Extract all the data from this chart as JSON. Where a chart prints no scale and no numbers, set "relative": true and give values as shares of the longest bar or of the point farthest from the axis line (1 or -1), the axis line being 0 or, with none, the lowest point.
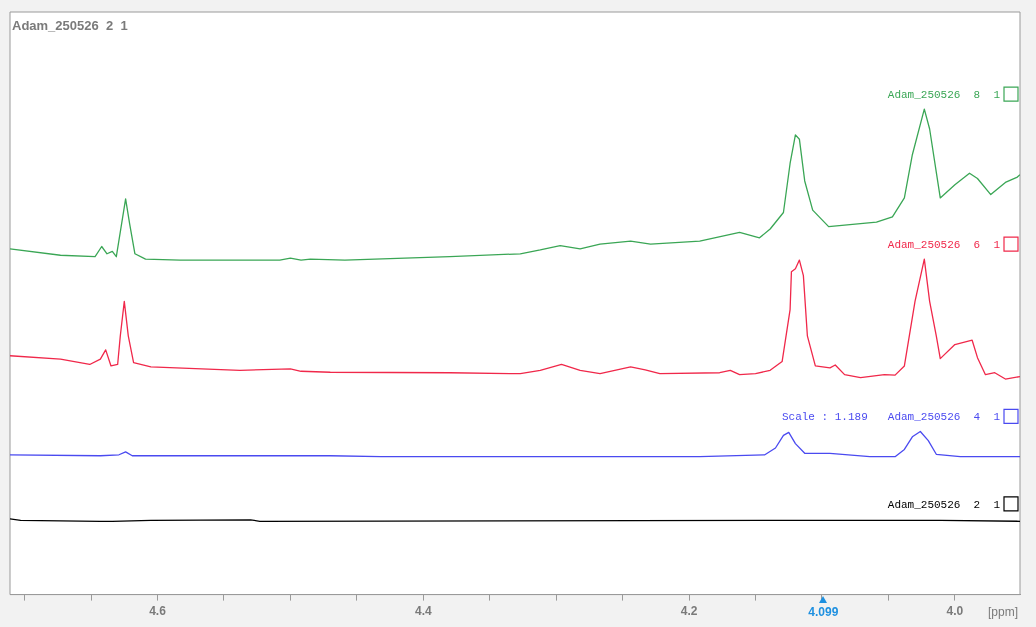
{
  "chart_data": {
    "type": "line",
    "relative": true,
    "marker": "none",
    "legend": "right",
    "title": "Adam_250526  2  1",
    "xlabel": "[ppm]",
    "xlim": [
      4.711,
      3.951
    ],
    "xticks": [
      {
        "value": 4.7,
        "label": null
      },
      {
        "value": 4.65,
        "label": null
      },
      {
        "value": 4.6,
        "label": "4.6"
      },
      {
        "value": 4.55,
        "label": null
      },
      {
        "value": 4.5,
        "label": null
      },
      {
        "value": 4.45,
        "label": null
      },
      {
        "value": 4.4,
        "label": "4.4"
      },
      {
        "value": 4.35,
        "label": null
      },
      {
        "value": 4.3,
        "label": null
      },
      {
        "value": 4.25,
        "label": null
      },
      {
        "value": 4.2,
        "label": "4.2"
      },
      {
        "value": 4.15,
        "label": null
      },
      {
        "value": 4.1,
        "label": null
      },
      {
        "value": 4.05,
        "label": null
      },
      {
        "value": 4.0,
        "label": "4.0"
      }
    ],
    "annotations": [
      "Scale : 1.189",
      "4.099"
    ],
    "series": [
      {
        "name": "Adam_250526  8  1",
        "color": "#3aa655",
        "x": [
          4.711,
          4.673,
          4.647,
          4.642,
          4.638,
          4.634,
          4.631,
          4.627,
          4.624,
          4.621,
          4.617,
          4.609,
          4.583,
          4.508,
          4.5,
          4.492,
          4.485,
          4.459,
          4.38,
          4.327,
          4.312,
          4.297,
          4.282,
          4.267,
          4.244,
          4.229,
          4.192,
          4.162,
          4.147,
          4.139,
          4.129,
          4.124,
          4.12,
          4.117,
          4.113,
          4.107,
          4.095,
          4.059,
          4.047,
          4.038,
          4.032,
          4.023,
          4.019,
          4.014,
          4.011,
          4.0,
          3.989,
          3.983,
          3.973,
          3.962,
          3.953,
          3.951
        ],
        "values": [
          0.712,
          0.699,
          0.696,
          0.717,
          0.702,
          0.707,
          0.696,
          0.764,
          0.815,
          0.764,
          0.702,
          0.691,
          0.689,
          0.689,
          0.693,
          0.689,
          0.691,
          0.689,
          0.696,
          0.702,
          0.71,
          0.719,
          0.712,
          0.722,
          0.728,
          0.722,
          0.728,
          0.746,
          0.735,
          0.753,
          0.787,
          0.888,
          0.947,
          0.938,
          0.852,
          0.792,
          0.758,
          0.767,
          0.778,
          0.817,
          0.906,
          1.0,
          0.959,
          0.87,
          0.817,
          0.844,
          0.868,
          0.857,
          0.824,
          0.849,
          0.86,
          0.865
        ]
      },
      {
        "name": "Adam_250526  6  1",
        "color": "#f0284a",
        "x": [
          4.711,
          4.673,
          4.651,
          4.643,
          4.639,
          4.635,
          4.63,
          4.628,
          4.625,
          4.622,
          4.618,
          4.605,
          4.538,
          4.5,
          4.492,
          4.47,
          4.38,
          4.327,
          4.312,
          4.296,
          4.282,
          4.267,
          4.244,
          4.233,
          4.222,
          4.177,
          4.169,
          4.162,
          4.15,
          4.139,
          4.13,
          4.124,
          4.123,
          4.12,
          4.117,
          4.114,
          4.111,
          4.105,
          4.094,
          4.09,
          4.083,
          4.071,
          4.053,
          4.045,
          4.038,
          4.03,
          4.023,
          4.019,
          4.014,
          4.011,
          4.0,
          3.987,
          3.983,
          3.977,
          3.97,
          3.962,
          3.951
        ],
        "values": [
          0.492,
          0.485,
          0.474,
          0.485,
          0.504,
          0.471,
          0.474,
          0.533,
          0.604,
          0.533,
          0.478,
          0.469,
          0.462,
          0.465,
          0.46,
          0.458,
          0.457,
          0.455,
          0.462,
          0.474,
          0.462,
          0.455,
          0.469,
          0.463,
          0.455,
          0.457,
          0.462,
          0.453,
          0.455,
          0.462,
          0.48,
          0.587,
          0.665,
          0.671,
          0.689,
          0.657,
          0.533,
          0.471,
          0.467,
          0.473,
          0.453,
          0.447,
          0.453,
          0.452,
          0.471,
          0.604,
          0.691,
          0.604,
          0.533,
          0.486,
          0.515,
          0.524,
          0.488,
          0.453,
          0.457,
          0.444,
          0.449
        ]
      },
      {
        "name": "Adam_250526  4  1",
        "color": "#4a4af0",
        "x": [
          4.711,
          4.643,
          4.629,
          4.624,
          4.619,
          4.47,
          4.432,
          4.192,
          4.143,
          4.135,
          4.129,
          4.125,
          4.12,
          4.113,
          4.094,
          4.064,
          4.045,
          4.038,
          4.032,
          4.026,
          4.02,
          4.014,
          3.996,
          3.951
        ],
        "values": [
          0.288,
          0.286,
          0.288,
          0.294,
          0.286,
          0.286,
          0.284,
          0.284,
          0.288,
          0.302,
          0.328,
          0.334,
          0.311,
          0.291,
          0.291,
          0.284,
          0.284,
          0.299,
          0.325,
          0.336,
          0.317,
          0.289,
          0.284,
          0.284
        ]
      },
      {
        "name": "Adam_250526  2  1",
        "color": "#000000",
        "x": [
          4.711,
          4.703,
          4.643,
          4.634,
          4.605,
          4.53,
          4.523,
          4.117,
          4.011,
          3.951
        ],
        "values": [
          0.156,
          0.153,
          0.151,
          0.151,
          0.153,
          0.154,
          0.151,
          0.153,
          0.153,
          0.151
        ]
      }
    ]
  }
}
